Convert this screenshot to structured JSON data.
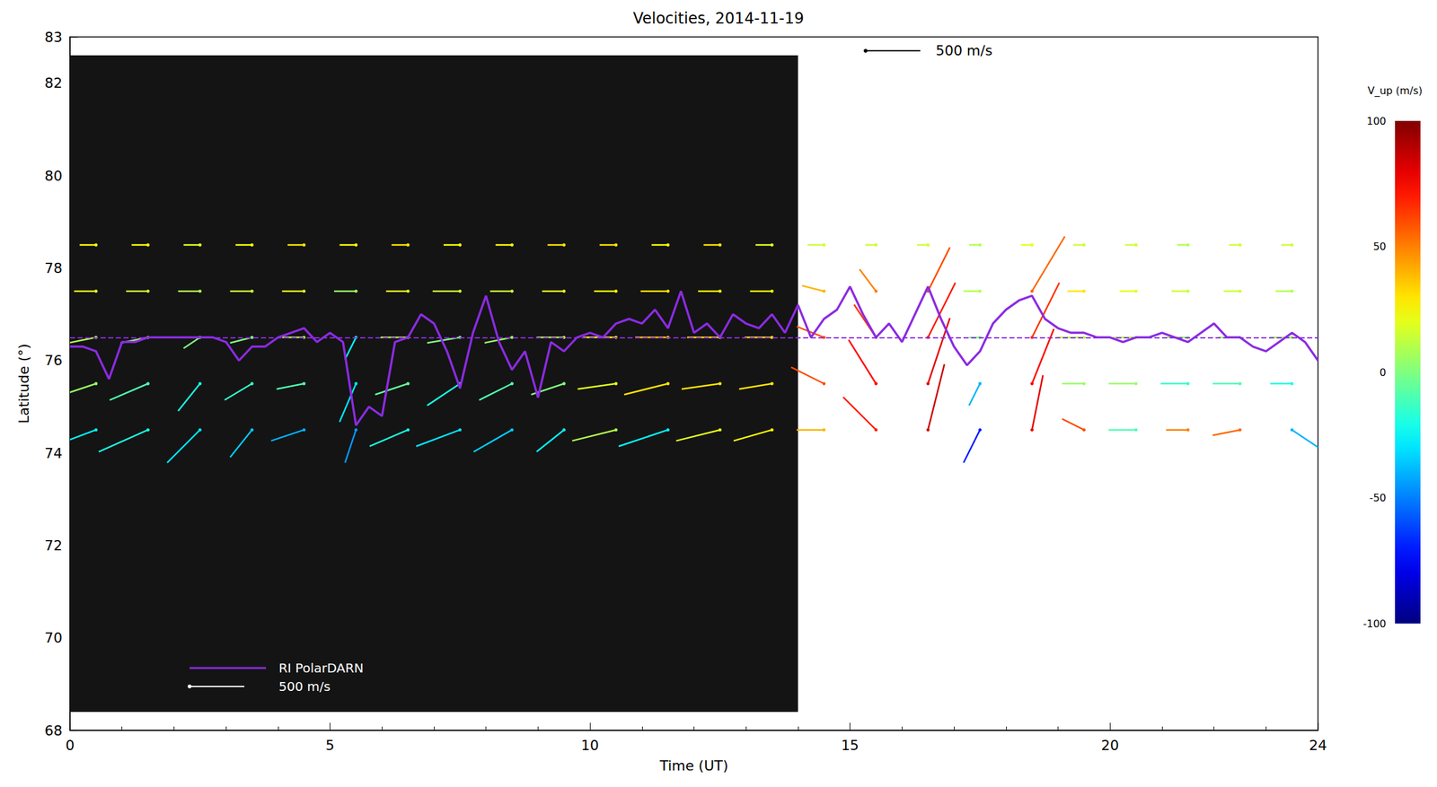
{
  "chart_data": {
    "type": "vector",
    "title": "Velocities, 2014-11-19",
    "x_label": "Time (UT)",
    "y_label": "Latitude (°)",
    "xlim": [
      0,
      24
    ],
    "xticks": [
      0,
      5,
      10,
      15,
      20
    ],
    "ylim": [
      68,
      83
    ],
    "yticks": [
      68,
      70,
      72,
      74,
      76,
      78,
      80,
      82
    ],
    "legend": "lower left",
    "background_image": {
      "x": [
        0,
        14
      ],
      "y": [
        68.4,
        82.6
      ],
      "color": "#141414"
    },
    "series": [
      {
        "name": "RI PolarDARN",
        "type": "line",
        "color": "#8b2be2",
        "reference_value": 76.5,
        "x": [
          0,
          0.25,
          0.5,
          0.75,
          1,
          1.25,
          1.5,
          1.75,
          2,
          2.25,
          2.5,
          2.75,
          3,
          3.25,
          3.5,
          3.75,
          4,
          4.25,
          4.5,
          4.75,
          5,
          5.25,
          5.5,
          5.75,
          6,
          6.25,
          6.5,
          6.75,
          7,
          7.25,
          7.5,
          7.75,
          8,
          8.25,
          8.5,
          8.75,
          9,
          9.25,
          9.5,
          9.75,
          10,
          10.25,
          10.5,
          10.75,
          11,
          11.25,
          11.5,
          11.75,
          12,
          12.25,
          12.5,
          12.75,
          13,
          13.25,
          13.5,
          13.75,
          14,
          14.25,
          14.5,
          14.75,
          15,
          15.25,
          15.5,
          15.75,
          16,
          16.25,
          16.5,
          16.75,
          17,
          17.25,
          17.5,
          17.75,
          18,
          18.25,
          18.5,
          18.75,
          19,
          19.25,
          19.5,
          19.75,
          20,
          20.25,
          20.5,
          20.75,
          21,
          21.25,
          21.5,
          21.75,
          22,
          22.25,
          22.5,
          22.75,
          23,
          23.25,
          23.5,
          23.75,
          24
        ],
        "values": [
          76.3,
          76.3,
          76.2,
          75.6,
          76.4,
          76.4,
          76.5,
          76.5,
          76.5,
          76.5,
          76.5,
          76.5,
          76.4,
          76.0,
          76.3,
          76.3,
          76.5,
          76.6,
          76.7,
          76.4,
          76.6,
          76.4,
          74.6,
          75.0,
          74.8,
          76.4,
          76.5,
          77.0,
          76.8,
          76.2,
          75.4,
          76.6,
          77.4,
          76.4,
          75.8,
          76.2,
          75.2,
          76.4,
          76.2,
          76.5,
          76.6,
          76.5,
          76.8,
          76.9,
          76.8,
          77.1,
          76.7,
          77.5,
          76.6,
          76.8,
          76.5,
          77.0,
          76.8,
          76.7,
          77.0,
          76.6,
          77.2,
          76.5,
          76.9,
          77.1,
          77.6,
          77.0,
          76.5,
          76.8,
          76.4,
          77.0,
          77.6,
          76.9,
          76.3,
          75.9,
          76.2,
          76.8,
          77.1,
          77.3,
          77.4,
          76.9,
          76.7,
          76.6,
          76.6,
          76.5,
          76.5,
          76.4,
          76.5,
          76.5,
          76.6,
          76.5,
          76.4,
          76.6,
          76.8,
          76.5,
          76.5,
          76.3,
          76.2,
          76.4,
          76.6,
          76.4,
          76.0
        ]
      }
    ],
    "vectors": [
      [
        0.5,
        74.5,
        -400,
        -150,
        -25
      ],
      [
        0.5,
        75.5,
        -300,
        -100,
        5
      ],
      [
        0.5,
        76.5,
        -250,
        -50,
        10
      ],
      [
        0.5,
        77.5,
        -200,
        0,
        20
      ],
      [
        0.5,
        78.5,
        -150,
        0,
        25
      ],
      [
        1.5,
        74.5,
        -450,
        -200,
        -20
      ],
      [
        1.5,
        75.5,
        -350,
        -150,
        -10
      ],
      [
        1.5,
        76.5,
        -250,
        -50,
        5
      ],
      [
        1.5,
        77.5,
        -200,
        0,
        15
      ],
      [
        1.5,
        78.5,
        -150,
        0,
        25
      ],
      [
        2.5,
        74.5,
        -300,
        -300,
        -30
      ],
      [
        2.5,
        75.5,
        -200,
        -250,
        -20
      ],
      [
        2.5,
        76.5,
        -150,
        -100,
        0
      ],
      [
        2.5,
        77.5,
        -200,
        0,
        10
      ],
      [
        2.5,
        78.5,
        -150,
        0,
        20
      ],
      [
        3.5,
        74.5,
        -200,
        -250,
        -35
      ],
      [
        3.5,
        75.5,
        -250,
        -150,
        -15
      ],
      [
        3.5,
        76.5,
        -200,
        -50,
        0
      ],
      [
        3.5,
        77.5,
        -200,
        0,
        15
      ],
      [
        3.5,
        78.5,
        -150,
        0,
        25
      ],
      [
        4.5,
        74.5,
        -300,
        -100,
        -40
      ],
      [
        4.5,
        75.5,
        -250,
        -50,
        -10
      ],
      [
        4.5,
        76.5,
        -200,
        0,
        10
      ],
      [
        4.5,
        77.5,
        -200,
        0,
        20
      ],
      [
        4.5,
        78.5,
        -150,
        0,
        30
      ],
      [
        5.5,
        74.5,
        -100,
        -300,
        -45
      ],
      [
        5.5,
        75.5,
        -150,
        -350,
        -30
      ],
      [
        5.5,
        76.5,
        -100,
        -200,
        -25
      ],
      [
        5.5,
        77.5,
        -200,
        0,
        5
      ],
      [
        5.5,
        78.5,
        -150,
        0,
        25
      ],
      [
        6.5,
        74.5,
        -350,
        -150,
        -20
      ],
      [
        6.5,
        75.5,
        -300,
        -100,
        -5
      ],
      [
        6.5,
        76.5,
        -250,
        0,
        10
      ],
      [
        6.5,
        77.5,
        -200,
        0,
        20
      ],
      [
        6.5,
        78.5,
        -150,
        0,
        30
      ],
      [
        7.5,
        74.5,
        -400,
        -150,
        -30
      ],
      [
        7.5,
        75.5,
        -300,
        -200,
        -20
      ],
      [
        7.5,
        76.5,
        -300,
        -50,
        0
      ],
      [
        7.5,
        77.5,
        -250,
        0,
        15
      ],
      [
        7.5,
        78.5,
        -150,
        0,
        25
      ],
      [
        8.5,
        74.5,
        -350,
        -200,
        -35
      ],
      [
        8.5,
        75.5,
        -300,
        -150,
        -10
      ],
      [
        8.5,
        76.5,
        -250,
        -50,
        5
      ],
      [
        8.5,
        77.5,
        -200,
        0,
        15
      ],
      [
        8.5,
        78.5,
        -150,
        0,
        25
      ],
      [
        9.5,
        74.5,
        -250,
        -200,
        -25
      ],
      [
        9.5,
        75.5,
        -300,
        -100,
        0
      ],
      [
        9.5,
        76.5,
        -250,
        0,
        10
      ],
      [
        9.5,
        77.5,
        -200,
        0,
        20
      ],
      [
        9.5,
        78.5,
        -150,
        0,
        30
      ],
      [
        10.5,
        74.5,
        -400,
        -100,
        10
      ],
      [
        10.5,
        75.5,
        -350,
        -50,
        20
      ],
      [
        10.5,
        76.5,
        -300,
        0,
        25
      ],
      [
        10.5,
        77.5,
        -200,
        0,
        25
      ],
      [
        10.5,
        78.5,
        -150,
        0,
        30
      ],
      [
        11.5,
        74.5,
        -450,
        -150,
        -25
      ],
      [
        11.5,
        75.5,
        -400,
        -100,
        30
      ],
      [
        11.5,
        76.5,
        -300,
        0,
        35
      ],
      [
        11.5,
        77.5,
        -250,
        0,
        30
      ],
      [
        11.5,
        78.5,
        -150,
        0,
        25
      ],
      [
        12.5,
        74.5,
        -400,
        -100,
        20
      ],
      [
        12.5,
        75.5,
        -350,
        -50,
        30
      ],
      [
        12.5,
        76.5,
        -300,
        0,
        30
      ],
      [
        12.5,
        77.5,
        -200,
        0,
        25
      ],
      [
        12.5,
        78.5,
        -150,
        0,
        30
      ],
      [
        13.5,
        74.5,
        -350,
        -100,
        25
      ],
      [
        13.5,
        75.5,
        -300,
        -50,
        30
      ],
      [
        13.5,
        76.5,
        -250,
        0,
        30
      ],
      [
        13.5,
        77.5,
        -200,
        0,
        25
      ],
      [
        13.5,
        78.5,
        -150,
        0,
        20
      ],
      [
        14.5,
        74.5,
        -250,
        0,
        40
      ],
      [
        14.5,
        75.5,
        -300,
        150,
        60
      ],
      [
        14.5,
        76.5,
        -250,
        100,
        60
      ],
      [
        14.5,
        77.5,
        -200,
        50,
        40
      ],
      [
        14.5,
        78.5,
        -150,
        0,
        15
      ],
      [
        15.5,
        74.5,
        -300,
        300,
        70
      ],
      [
        15.5,
        75.5,
        -250,
        400,
        75
      ],
      [
        15.5,
        76.5,
        -200,
        300,
        65
      ],
      [
        15.5,
        77.5,
        -150,
        200,
        50
      ],
      [
        15.5,
        78.5,
        -100,
        0,
        15
      ],
      [
        16.5,
        74.5,
        150,
        600,
        85
      ],
      [
        16.5,
        75.5,
        200,
        600,
        80
      ],
      [
        16.5,
        76.5,
        250,
        500,
        70
      ],
      [
        16.5,
        77.5,
        200,
        400,
        60
      ],
      [
        16.5,
        78.5,
        -100,
        0,
        15
      ],
      [
        17.5,
        74.5,
        -150,
        -300,
        -70
      ],
      [
        17.5,
        75.5,
        -100,
        -200,
        -40
      ],
      [
        17.5,
        76.5,
        -100,
        0,
        0
      ],
      [
        17.5,
        77.5,
        -150,
        0,
        10
      ],
      [
        17.5,
        78.5,
        -100,
        0,
        10
      ],
      [
        18.5,
        74.5,
        100,
        500,
        80
      ],
      [
        18.5,
        75.5,
        200,
        500,
        75
      ],
      [
        18.5,
        76.5,
        250,
        500,
        65
      ],
      [
        18.5,
        77.5,
        300,
        500,
        55
      ],
      [
        18.5,
        78.5,
        -100,
        0,
        20
      ],
      [
        19.5,
        74.5,
        -200,
        100,
        60
      ],
      [
        19.5,
        75.5,
        -200,
        0,
        5
      ],
      [
        19.5,
        76.5,
        -250,
        0,
        10
      ],
      [
        19.5,
        77.5,
        -150,
        0,
        30
      ],
      [
        19.5,
        78.5,
        -100,
        0,
        15
      ],
      [
        20.5,
        74.5,
        -250,
        0,
        -10
      ],
      [
        20.5,
        75.5,
        -250,
        0,
        5
      ],
      [
        20.5,
        76.5,
        -200,
        0,
        10
      ],
      [
        20.5,
        77.5,
        -150,
        0,
        20
      ],
      [
        20.5,
        78.5,
        -100,
        0,
        15
      ],
      [
        21.5,
        74.5,
        -200,
        0,
        50
      ],
      [
        21.5,
        75.5,
        -250,
        0,
        -15
      ],
      [
        21.5,
        76.5,
        -200,
        0,
        5
      ],
      [
        21.5,
        77.5,
        -150,
        0,
        15
      ],
      [
        21.5,
        78.5,
        -100,
        0,
        10
      ],
      [
        22.5,
        74.5,
        -250,
        -50,
        55
      ],
      [
        22.5,
        75.5,
        -250,
        0,
        -10
      ],
      [
        22.5,
        76.5,
        -200,
        0,
        5
      ],
      [
        22.5,
        77.5,
        -150,
        0,
        15
      ],
      [
        22.5,
        78.5,
        -100,
        0,
        15
      ],
      [
        23.5,
        74.5,
        300,
        -200,
        -40
      ],
      [
        23.5,
        75.5,
        -200,
        0,
        -20
      ],
      [
        23.5,
        76.5,
        -200,
        0,
        5
      ],
      [
        23.5,
        77.5,
        -150,
        0,
        10
      ],
      [
        23.5,
        78.5,
        -100,
        0,
        15
      ]
    ],
    "scale": {
      "value": 500,
      "label": "500 m/s"
    },
    "colorbar": {
      "title": "V_up (m/s)",
      "range": [
        -100,
        100
      ],
      "ticks": [
        -100,
        -50,
        0,
        50,
        100
      ]
    }
  }
}
